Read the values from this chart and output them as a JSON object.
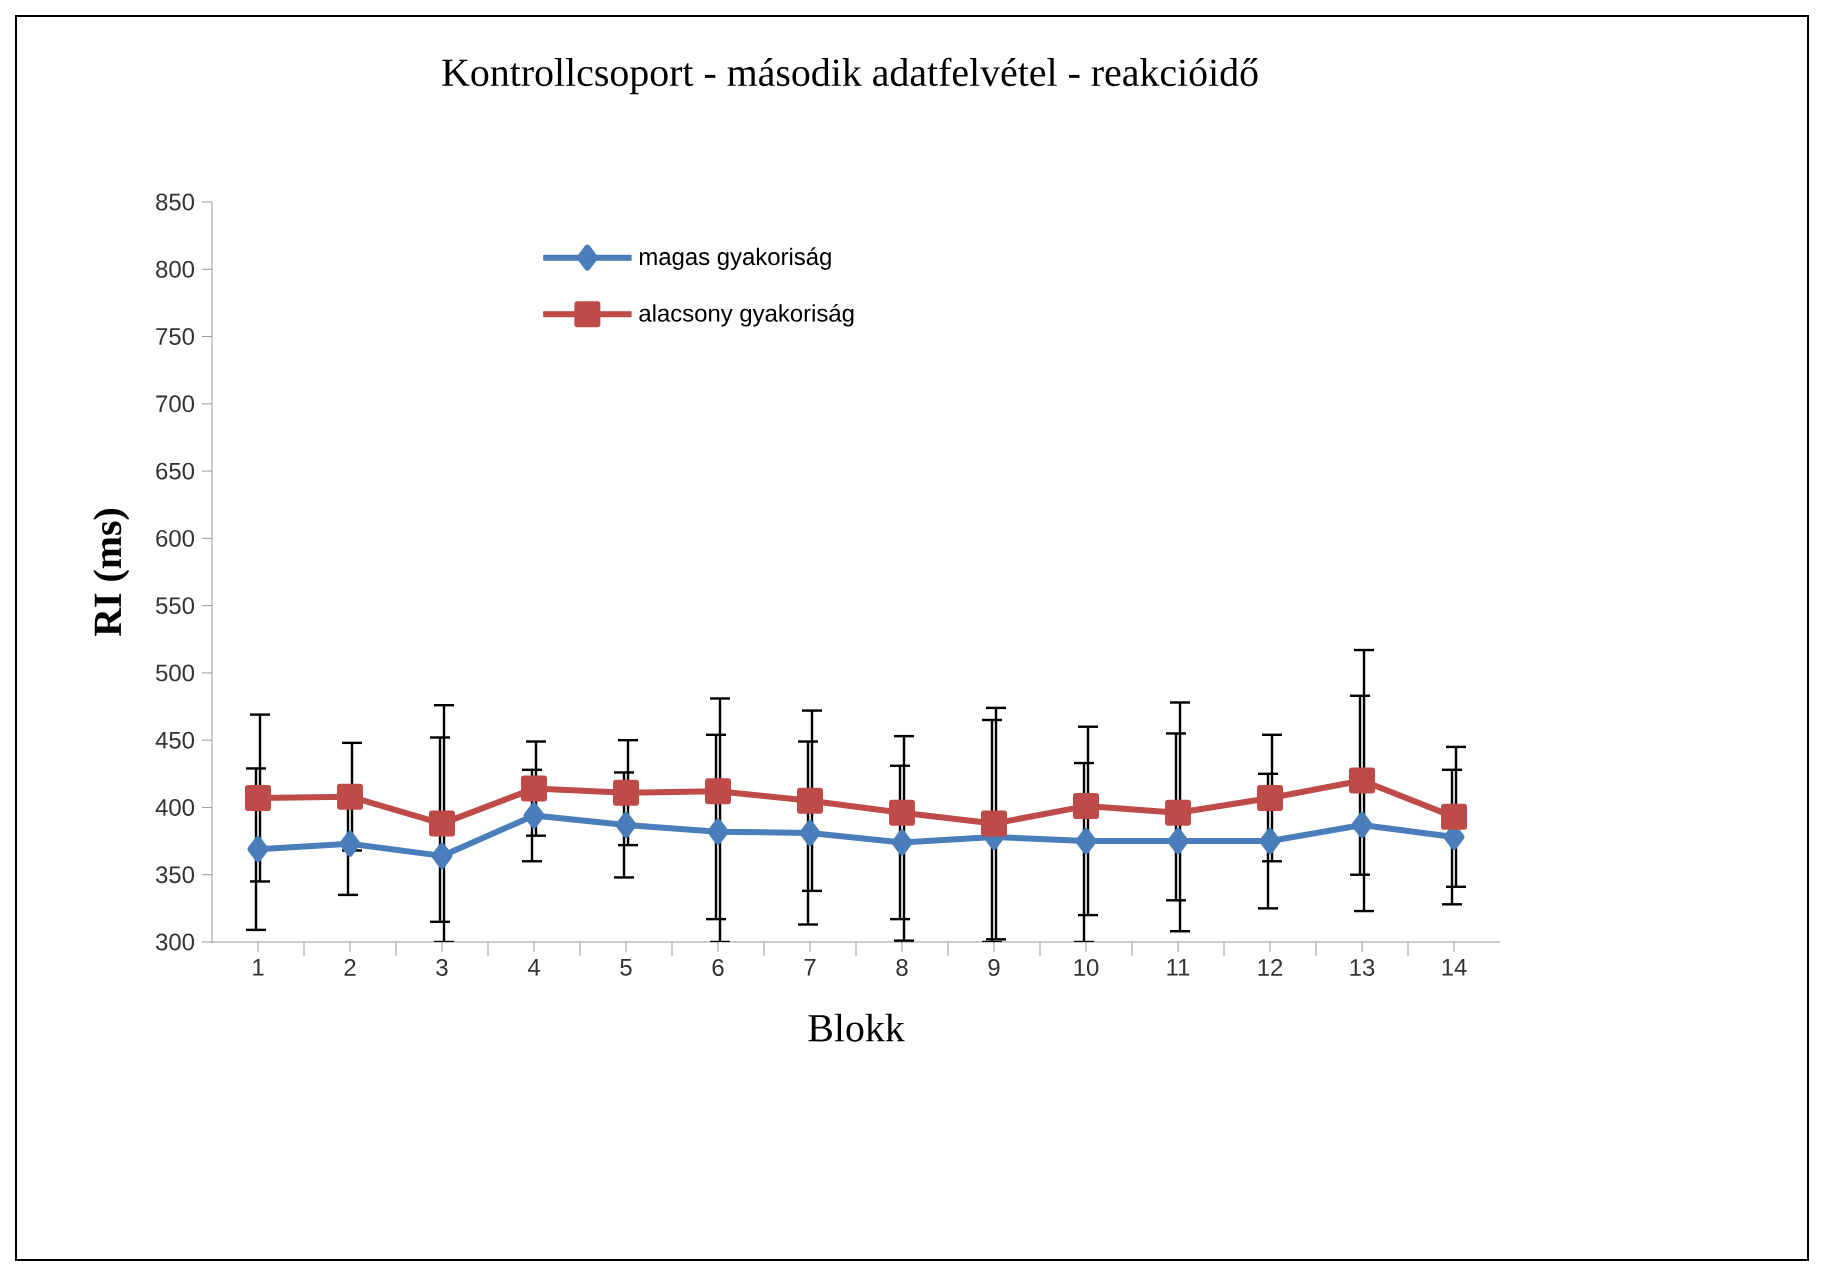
{
  "chart_data": {
    "type": "line",
    "title": "Kontrollcsoport - második adatfelvétel - reakcióidő",
    "xlabel": "Blokk",
    "ylabel": "RI (ms)",
    "categories": [
      "1",
      "2",
      "3",
      "4",
      "5",
      "6",
      "7",
      "8",
      "9",
      "10",
      "11",
      "12",
      "13",
      "14"
    ],
    "ylim": [
      300,
      850
    ],
    "yticks": [
      300,
      350,
      400,
      450,
      500,
      550,
      600,
      650,
      700,
      750,
      800,
      850
    ],
    "legend": "top left",
    "grid": false,
    "line_style": "solid",
    "series": [
      {
        "name": "magas gyakoriság",
        "color": "#4a7ebb",
        "marker": "diamond",
        "values": [
          369,
          373,
          364,
          394,
          387,
          382,
          381,
          374,
          378,
          375,
          375,
          375,
          387,
          378
        ],
        "errors": [
          60,
          38,
          [
            315,
            452
          ],
          34,
          39,
          [
            317,
            454
          ],
          68,
          57,
          [
            300,
            465
          ],
          [
            300,
            433
          ],
          [
            331,
            455
          ],
          50,
          [
            350,
            483
          ],
          50
        ]
      },
      {
        "name": "alacsony gyakoriság",
        "color": "#be4b48",
        "marker": "square",
        "values": [
          407,
          408,
          388,
          414,
          411,
          412,
          405,
          396,
          388,
          401,
          396,
          407,
          420,
          393
        ],
        "errors": [
          62,
          40,
          [
            300,
            476
          ],
          35,
          39,
          [
            300,
            481
          ],
          67,
          [
            301,
            453
          ],
          86,
          [
            320,
            460
          ],
          [
            308,
            478
          ],
          47,
          97,
          52
        ]
      }
    ]
  }
}
